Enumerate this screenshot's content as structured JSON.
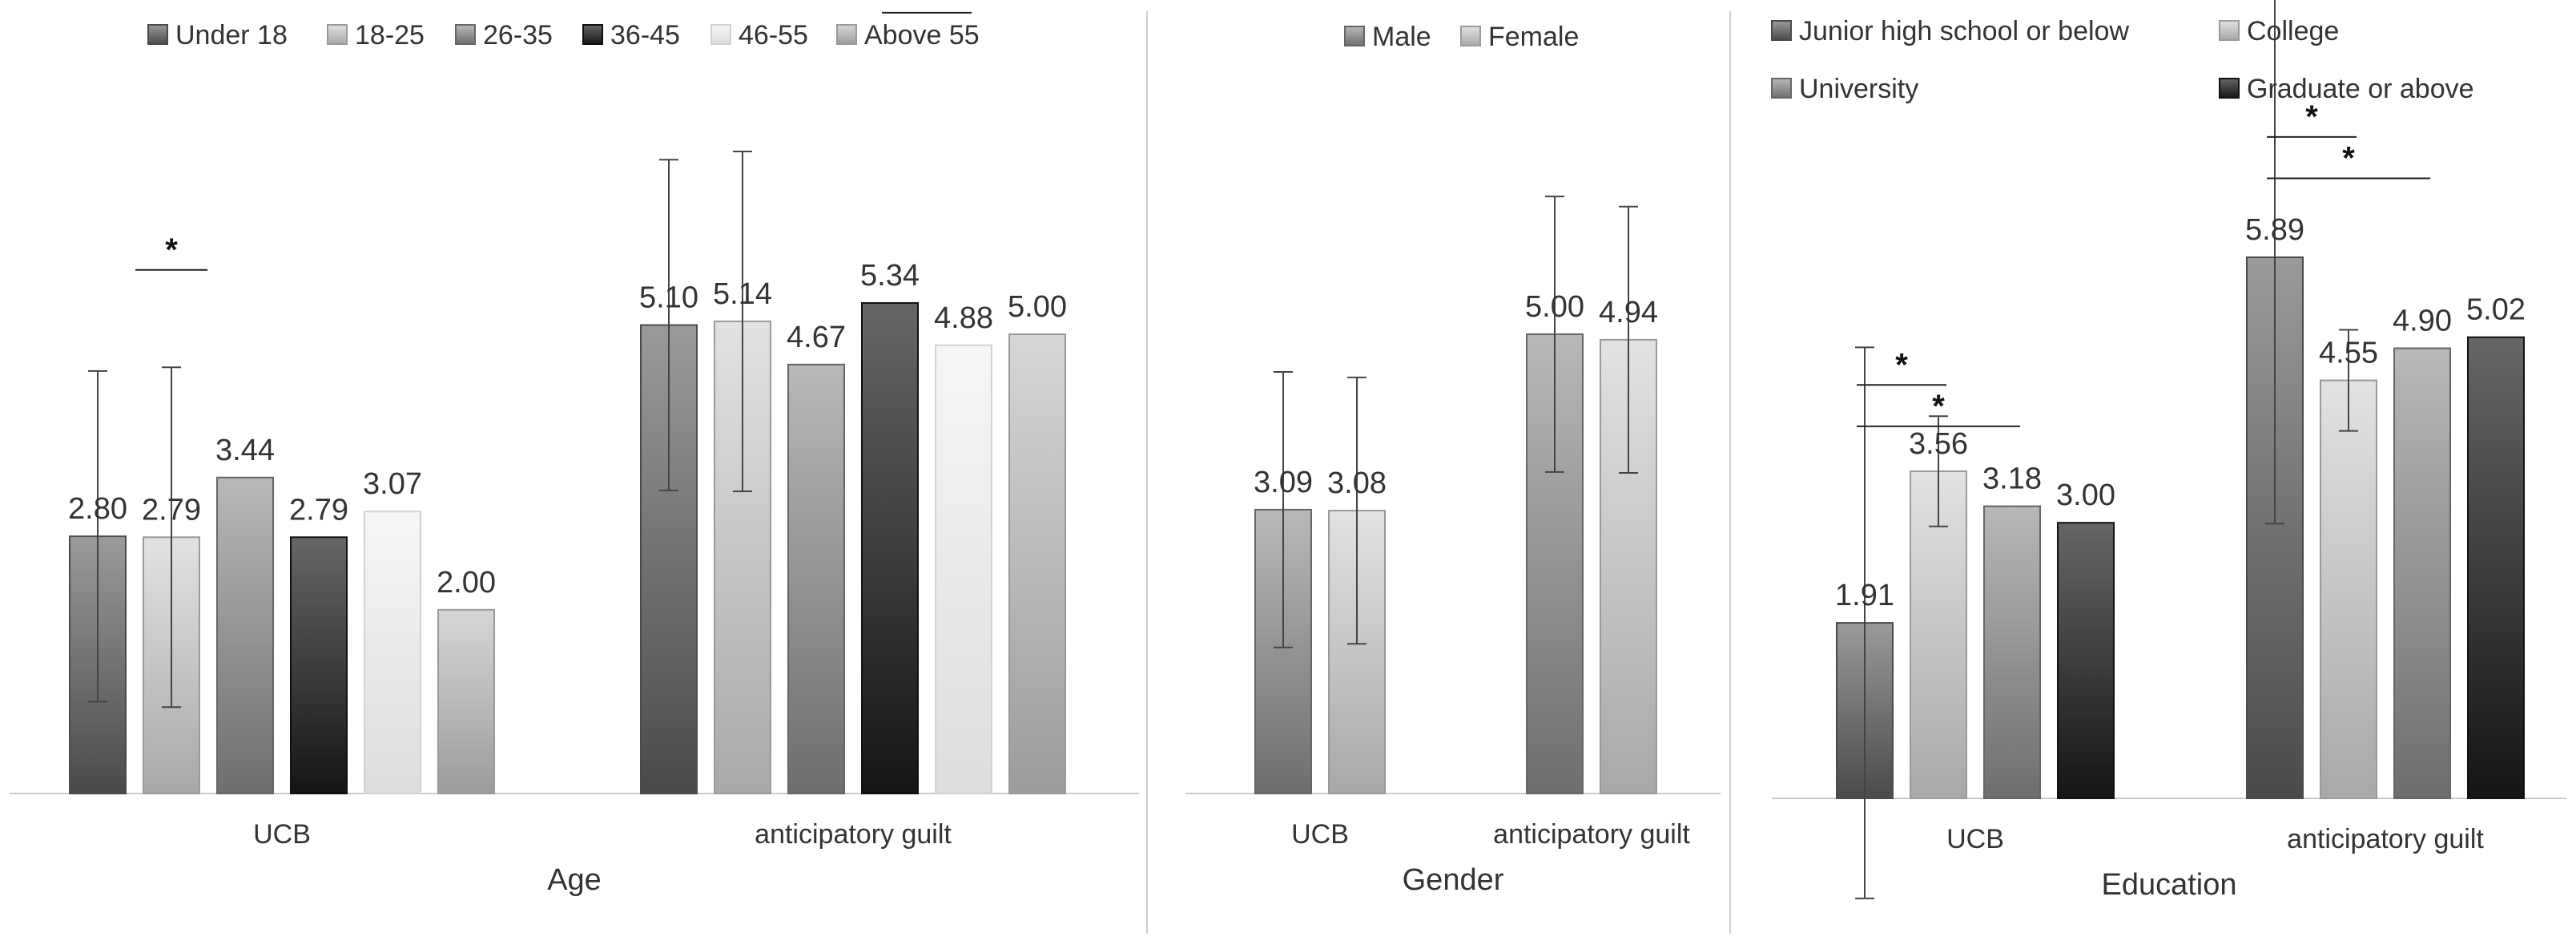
{
  "colors": {
    "background": "#ffffff",
    "axis": "#cccccc",
    "divider": "#cfcfcf",
    "text": "#333333",
    "error_bar": "#444444"
  },
  "chart_data": [
    {
      "type": "bar",
      "title": "",
      "xlabel": "Age",
      "ylabel": "",
      "categories": [
        "UCB",
        "anticipatory guilt"
      ],
      "ylim": [
        0,
        7.2
      ],
      "legend_position": "top",
      "series": [
        {
          "name": "Under 18",
          "values": [
            2.8,
            5.1
          ],
          "style": "mid-gray",
          "error": [
            1.8,
            1.8
          ]
        },
        {
          "name": "18-25",
          "values": [
            2.79,
            5.14
          ],
          "style": "light-gray",
          "error": [
            1.85,
            1.85
          ]
        },
        {
          "name": "26-35",
          "values": [
            3.44,
            4.67
          ],
          "style": "gray",
          "error": [
            null,
            null
          ]
        },
        {
          "name": "36-45",
          "values": [
            2.79,
            5.34
          ],
          "style": "black",
          "error": [
            null,
            null
          ]
        },
        {
          "name": "46-55",
          "values": [
            3.07,
            4.88
          ],
          "style": "very-light",
          "error": [
            null,
            null
          ]
        },
        {
          "name": "Above 55",
          "values": [
            2.0,
            5.0
          ],
          "style": "silver",
          "error": [
            null,
            null
          ]
        }
      ],
      "significance": [
        {
          "category": 0,
          "from": 1,
          "to": 1,
          "level": 5.7,
          "label": "*"
        },
        {
          "category": 1,
          "from": 3,
          "to": 4,
          "level": 8.5,
          "label": "*"
        }
      ]
    },
    {
      "type": "bar",
      "title": "",
      "xlabel": "Gender",
      "ylabel": "",
      "categories": [
        "UCB",
        "anticipatory guilt"
      ],
      "ylim": [
        0,
        7.2
      ],
      "legend_position": "top",
      "series": [
        {
          "name": "Male",
          "values": [
            3.09,
            5.0
          ],
          "style": "gray",
          "error": [
            1.5,
            1.5
          ]
        },
        {
          "name": "Female",
          "values": [
            3.08,
            4.94
          ],
          "style": "light-gray",
          "error": [
            1.45,
            1.45
          ]
        }
      ],
      "significance": []
    },
    {
      "type": "bar",
      "title": "",
      "xlabel": "Education",
      "ylabel": "",
      "categories": [
        "UCB",
        "anticipatory guilt"
      ],
      "ylim": [
        0,
        7.2
      ],
      "legend_position": "top",
      "series": [
        {
          "name": "Junior high school or below",
          "values": [
            1.91,
            5.89
          ],
          "style": "mid-gray",
          "error": [
            3.0,
            2.9
          ]
        },
        {
          "name": "College",
          "values": [
            3.56,
            4.55
          ],
          "style": "light-gray",
          "error": [
            0.6,
            0.55
          ]
        },
        {
          "name": "University",
          "values": [
            3.18,
            4.9
          ],
          "style": "gray",
          "error": [
            null,
            null
          ]
        },
        {
          "name": "Graduate or above",
          "values": [
            3.0,
            5.02
          ],
          "style": "black",
          "error": [
            null,
            null
          ]
        }
      ],
      "significance": [
        {
          "category": 0,
          "from": 0,
          "to": 1,
          "level": 4.5,
          "label": "*"
        },
        {
          "category": 0,
          "from": 0,
          "to": 2,
          "level": 4.05,
          "label": "*"
        },
        {
          "category": 1,
          "from": 0,
          "to": 1,
          "level": 7.2,
          "label": "*"
        },
        {
          "category": 1,
          "from": 0,
          "to": 2,
          "level": 6.75,
          "label": "*"
        }
      ]
    }
  ]
}
